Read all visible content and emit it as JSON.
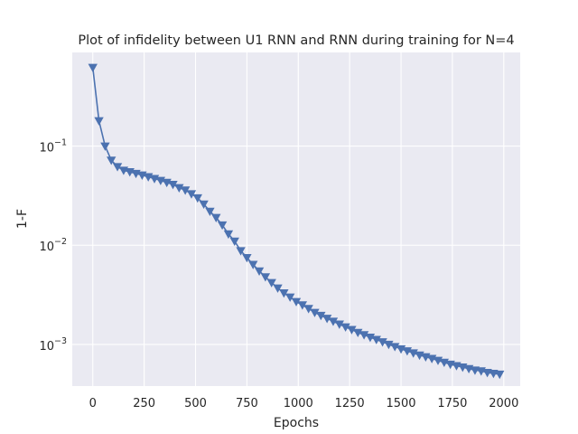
{
  "chart_data": {
    "type": "line",
    "title": "Plot of infidelity between U1 RNN and RNN during training for N=4",
    "xlabel": "Epochs",
    "ylabel": "1-F",
    "xlim": [
      -100,
      2080
    ],
    "ylim": [
      0.00038,
      0.88
    ],
    "yscale": "log",
    "grid": true,
    "marker": "triangle-down",
    "colors": {
      "background": "#eaeaf2",
      "series": "#4c72b0"
    },
    "xticks": [
      0,
      250,
      500,
      750,
      1000,
      1250,
      1500,
      1750,
      2000
    ],
    "xtick_labels": [
      "0",
      "250",
      "500",
      "750",
      "1000",
      "1250",
      "1500",
      "1750",
      "2000"
    ],
    "yticks": [
      0.001,
      0.01,
      0.1
    ],
    "ytick_labels": [
      {
        "base": "10",
        "exp": "−3"
      },
      {
        "base": "10",
        "exp": "−2"
      },
      {
        "base": "10",
        "exp": "−1"
      }
    ],
    "series": [
      {
        "x": [
          0,
          30,
          60,
          90,
          120,
          150,
          180,
          210,
          240,
          270,
          300,
          330,
          360,
          390,
          420,
          450,
          480,
          510,
          540,
          570,
          600,
          630,
          660,
          690,
          720,
          750,
          780,
          810,
          840,
          870,
          900,
          930,
          960,
          990,
          1020,
          1050,
          1080,
          1110,
          1140,
          1170,
          1200,
          1230,
          1260,
          1290,
          1320,
          1350,
          1380,
          1410,
          1440,
          1470,
          1500,
          1530,
          1560,
          1590,
          1620,
          1650,
          1680,
          1710,
          1740,
          1770,
          1800,
          1830,
          1860,
          1890,
          1920,
          1950,
          1980
        ],
        "y": [
          0.62,
          0.18,
          0.1,
          0.072,
          0.062,
          0.057,
          0.055,
          0.053,
          0.051,
          0.049,
          0.047,
          0.045,
          0.043,
          0.041,
          0.038,
          0.036,
          0.033,
          0.03,
          0.026,
          0.022,
          0.019,
          0.016,
          0.013,
          0.011,
          0.0088,
          0.0075,
          0.0064,
          0.0055,
          0.0048,
          0.0042,
          0.0037,
          0.0033,
          0.003,
          0.0027,
          0.0025,
          0.0023,
          0.0021,
          0.00196,
          0.00183,
          0.00171,
          0.0016,
          0.0015,
          0.00141,
          0.00132,
          0.00125,
          0.00118,
          0.00112,
          0.00106,
          0.001,
          0.00095,
          0.0009,
          0.00086,
          0.00082,
          0.00078,
          0.00075,
          0.00072,
          0.00069,
          0.00066,
          0.00063,
          0.00061,
          0.00059,
          0.00057,
          0.00055,
          0.00054,
          0.00052,
          0.00051,
          0.0005
        ]
      }
    ]
  }
}
